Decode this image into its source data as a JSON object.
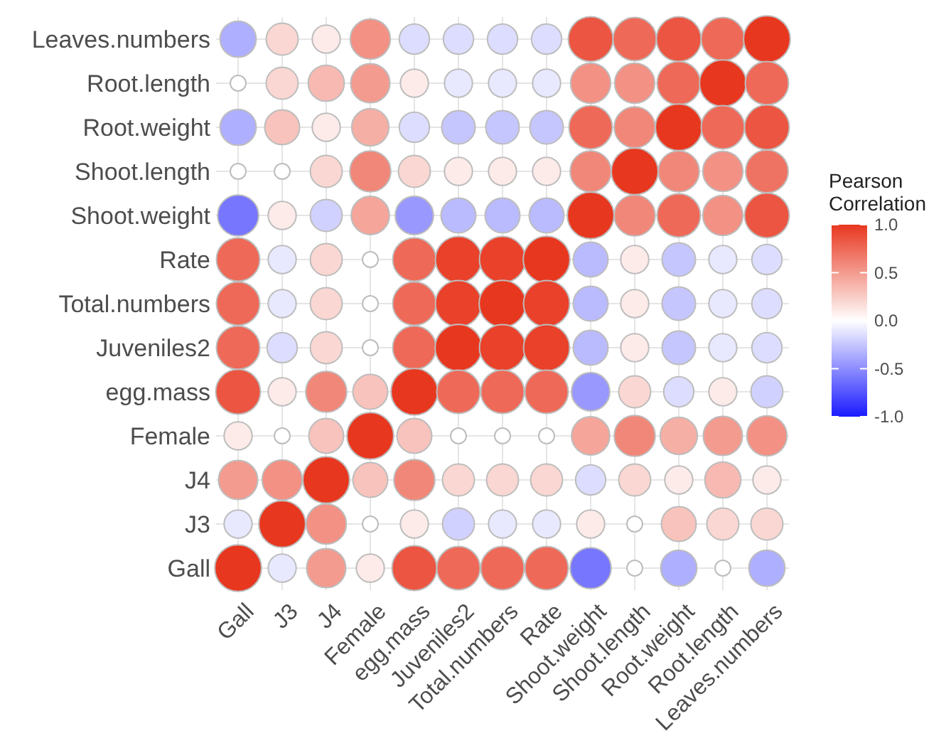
{
  "chart_data": {
    "type": "heatmap",
    "legend_title": "Pearson Correlation",
    "grid": true,
    "categories": [
      "Gall",
      "J3",
      "J4",
      "Female",
      "egg.mass",
      "Juveniles2",
      "Total.numbers",
      "Rate",
      "Shoot.weight",
      "Shoot.length",
      "Root.weight",
      "Root.length",
      "Leaves.numbers"
    ],
    "y_categories": [
      "Leaves.numbers",
      "Root.length",
      "Root.weight",
      "Shoot.length",
      "Shoot.weight",
      "Rate",
      "Total.numbers",
      "Juveniles2",
      "egg.mass",
      "Female",
      "J4",
      "J3",
      "Gall"
    ],
    "cells": [
      [
        -0.35,
        0.2,
        0.1,
        0.55,
        -0.15,
        -0.15,
        -0.15,
        -0.15,
        0.85,
        0.75,
        0.85,
        0.75,
        1
      ],
      [
        0,
        0.2,
        0.35,
        0.5,
        0.1,
        -0.1,
        -0.1,
        -0.1,
        0.55,
        0.55,
        0.75,
        1,
        0.75
      ],
      [
        -0.35,
        0.3,
        0.1,
        0.4,
        -0.15,
        -0.25,
        -0.25,
        -0.25,
        0.75,
        0.6,
        1,
        0.75,
        0.85
      ],
      [
        0,
        0,
        0.2,
        0.6,
        0.2,
        0.1,
        0.1,
        0.1,
        0.6,
        1,
        0.6,
        0.55,
        0.7
      ],
      [
        -0.6,
        0.1,
        -0.2,
        0.45,
        -0.45,
        -0.3,
        -0.3,
        -0.3,
        1,
        0.6,
        0.75,
        0.55,
        0.85
      ],
      [
        0.75,
        -0.1,
        0.2,
        0,
        0.75,
        0.95,
        0.95,
        1,
        -0.3,
        0.1,
        -0.25,
        -0.1,
        -0.15
      ],
      [
        0.75,
        -0.1,
        0.2,
        0,
        0.75,
        0.95,
        1,
        0.95,
        -0.3,
        0.1,
        -0.25,
        -0.1,
        -0.15
      ],
      [
        0.75,
        -0.15,
        0.2,
        0,
        0.75,
        1,
        0.95,
        0.95,
        -0.3,
        0.1,
        -0.25,
        -0.1,
        -0.15
      ],
      [
        0.85,
        0.1,
        0.6,
        0.3,
        1,
        0.75,
        0.75,
        0.75,
        -0.45,
        0.2,
        -0.15,
        0.1,
        -0.2
      ],
      [
        0.1,
        0,
        0.3,
        1,
        0.3,
        0,
        0,
        0,
        0.45,
        0.6,
        0.4,
        0.5,
        0.55
      ],
      [
        0.5,
        0.55,
        1,
        0.3,
        0.6,
        0.2,
        0.2,
        0.2,
        -0.15,
        0.2,
        0.1,
        0.35,
        0.1
      ],
      [
        -0.1,
        1,
        0.55,
        0,
        0.1,
        -0.2,
        -0.1,
        -0.1,
        0.1,
        0,
        0.3,
        0.2,
        0.2
      ],
      [
        1,
        -0.1,
        0.5,
        0.1,
        0.85,
        0.75,
        0.75,
        0.75,
        -0.6,
        0,
        -0.35,
        0,
        -0.35
      ]
    ],
    "clim": [
      -1,
      1
    ],
    "cticks": [
      {
        "value": 1,
        "label": "1.0"
      },
      {
        "value": 0.5,
        "label": "0.5"
      },
      {
        "value": 0,
        "label": "0.0"
      },
      {
        "value": -0.5,
        "label": "-0.5"
      },
      {
        "value": -1,
        "label": "-1.0"
      }
    ]
  }
}
